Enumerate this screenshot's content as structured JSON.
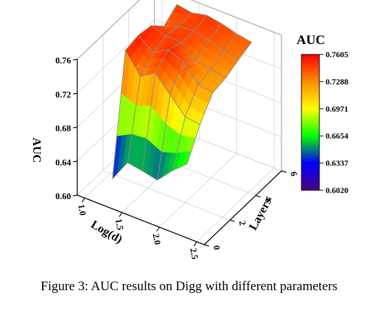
{
  "chart_data": {
    "type": "surface",
    "x_label": "Log(d)",
    "y_label": "Layers",
    "z_label": "AUC",
    "x_ticks": [
      "1.0",
      "1.5",
      "2.0",
      "2.5"
    ],
    "y_ticks": [
      "0",
      "2",
      "4",
      "6"
    ],
    "z_ticks": [
      "0.60",
      "0.64",
      "0.68",
      "0.72",
      "0.76"
    ],
    "xlim": [
      0.9,
      2.6
    ],
    "ylim": [
      0,
      6
    ],
    "zlim": [
      0.6,
      0.76
    ],
    "x": [
      1.2,
      1.4,
      1.6,
      1.8,
      2.0,
      2.2
    ],
    "y": [
      1,
      2,
      3,
      4,
      5,
      6
    ],
    "z": [
      [
        0.615,
        0.752,
        0.755,
        0.752,
        0.737,
        0.748
      ],
      [
        0.641,
        0.728,
        0.742,
        0.747,
        0.744,
        0.745
      ],
      [
        0.638,
        0.739,
        0.752,
        0.746,
        0.745,
        0.749
      ],
      [
        0.634,
        0.72,
        0.745,
        0.731,
        0.742,
        0.746
      ],
      [
        0.652,
        0.701,
        0.724,
        0.728,
        0.736,
        0.741
      ],
      [
        0.667,
        0.699,
        0.722,
        0.725,
        0.732,
        0.738
      ]
    ],
    "colorbar": {
      "title": "AUC",
      "ticks": [
        "0.7605",
        "0.7288",
        "0.6971",
        "0.6654",
        "0.6337",
        "0.6020"
      ],
      "min": 0.602,
      "max": 0.7605,
      "colors": [
        "#4b0082",
        "#0000ff",
        "#00ff00",
        "#ffff00",
        "#ff8c00",
        "#ff0000"
      ]
    },
    "grid": true
  },
  "caption": "Figure 3: AUC results on Digg with different parameters"
}
